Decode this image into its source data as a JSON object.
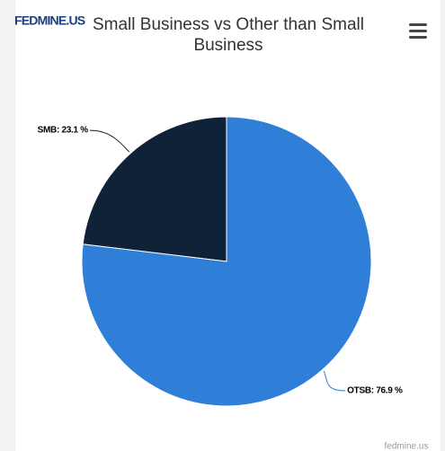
{
  "logo": "FEDMINE.US",
  "credit": "fedmine.us",
  "chart_data": {
    "type": "pie",
    "title": "Small Business vs Other than Small Business",
    "categories": [
      "SMB",
      "OTSB"
    ],
    "values": [
      23.1,
      76.9
    ],
    "value_labels": [
      "SMB: 23.1 %",
      "OTSB: 76.9 %"
    ],
    "colors": [
      "#0f2238",
      "#2f7ed8"
    ]
  }
}
